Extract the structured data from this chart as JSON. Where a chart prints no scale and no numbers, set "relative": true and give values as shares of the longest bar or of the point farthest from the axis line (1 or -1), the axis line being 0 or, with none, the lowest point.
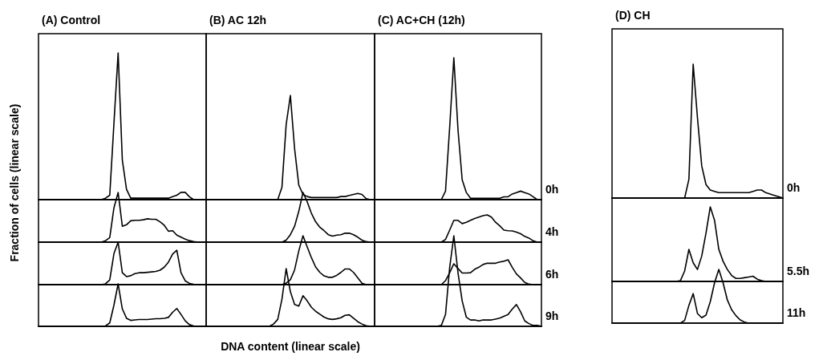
{
  "chart_data": [
    {
      "type": "line",
      "title": "(A) Control",
      "ylabel": "Fraction of cells (linear scale)",
      "relative": true,
      "color": "#000000",
      "categories": [
        null,
        null,
        null,
        null,
        null,
        null,
        null,
        null,
        null,
        null,
        null,
        null,
        null,
        null,
        null,
        null,
        null,
        null,
        null,
        null,
        null,
        null,
        null,
        null,
        null,
        null,
        null,
        null,
        null,
        null,
        null,
        null,
        null,
        null,
        null,
        null,
        null,
        null,
        null,
        null,
        null
      ],
      "values": [
        0,
        0,
        0,
        0,
        0,
        0,
        0,
        0,
        0,
        0,
        0,
        0,
        0,
        0,
        0,
        0,
        0.01,
        0.03,
        0.52,
        1,
        0.27,
        0.07,
        0.01,
        0.01,
        0.01,
        0.01,
        0.01,
        0.01,
        0.01,
        0.01,
        0.01,
        0.01,
        0.02,
        0.03,
        0.05,
        0.05,
        0.02,
        0,
        0,
        0,
        0
      ]
    },
    {
      "type": "line",
      "relative": true,
      "color": "#000000",
      "categories": [
        null,
        null,
        null,
        null,
        null,
        null,
        null,
        null,
        null,
        null,
        null,
        null,
        null,
        null,
        null,
        null,
        null,
        null,
        null,
        null,
        null,
        null,
        null,
        null,
        null,
        null,
        null,
        null,
        null,
        null,
        null,
        null,
        null,
        null,
        null,
        null,
        null,
        null,
        null,
        null,
        null
      ],
      "values": [
        0,
        0,
        0,
        0,
        0,
        0,
        0,
        0,
        0,
        0,
        0,
        0,
        0,
        0,
        0,
        0,
        0.03,
        0.09,
        0.69,
        1,
        0.32,
        0.35,
        0.43,
        0.44,
        0.44,
        0.45,
        0.47,
        0.46,
        0.46,
        0.41,
        0.34,
        0.22,
        0.23,
        0.14,
        0.1,
        0.06,
        0.03,
        0.01,
        0,
        0,
        0
      ]
    },
    {
      "type": "line",
      "relative": true,
      "color": "#000000",
      "categories": [
        null,
        null,
        null,
        null,
        null,
        null,
        null,
        null,
        null,
        null,
        null,
        null,
        null,
        null,
        null,
        null,
        null,
        null,
        null,
        null,
        null,
        null,
        null,
        null,
        null,
        null,
        null,
        null,
        null,
        null,
        null,
        null,
        null,
        null,
        null,
        null,
        null,
        null,
        null,
        null,
        null
      ],
      "values": [
        0,
        0,
        0,
        0,
        0,
        0,
        0,
        0,
        0,
        0,
        0,
        0,
        0,
        0,
        0,
        0,
        0.02,
        0.11,
        0.73,
        1,
        0.28,
        0.19,
        0.21,
        0.26,
        0.28,
        0.28,
        0.29,
        0.3,
        0.31,
        0.34,
        0.41,
        0.53,
        0.72,
        0.81,
        0.28,
        0.09,
        0.03,
        0.01,
        0,
        0,
        0
      ]
    },
    {
      "type": "line",
      "relative": true,
      "color": "#000000",
      "categories": [
        null,
        null,
        null,
        null,
        null,
        null,
        null,
        null,
        null,
        null,
        null,
        null,
        null,
        null,
        null,
        null,
        null,
        null,
        null,
        null,
        null,
        null,
        null,
        null,
        null,
        null,
        null,
        null,
        null,
        null,
        null,
        null,
        null,
        null,
        null,
        null,
        null,
        null,
        null,
        null,
        null
      ],
      "values": [
        0,
        0,
        0,
        0,
        0,
        0,
        0,
        0,
        0,
        0,
        0,
        0,
        0,
        0,
        0,
        0,
        0.01,
        0.08,
        0.5,
        1,
        0.41,
        0.19,
        0.14,
        0.15,
        0.16,
        0.16,
        0.16,
        0.17,
        0.18,
        0.18,
        0.19,
        0.21,
        0.33,
        0.42,
        0.28,
        0.13,
        0.04,
        0.01,
        0,
        0,
        0
      ]
    },
    {
      "type": "line",
      "title": "(B) AC 12h",
      "relative": true,
      "color": "#000000",
      "categories": [
        null,
        null,
        null,
        null,
        null,
        null,
        null,
        null,
        null,
        null,
        null,
        null,
        null,
        null,
        null,
        null,
        null,
        null,
        null,
        null,
        null,
        null,
        null,
        null,
        null,
        null,
        null,
        null,
        null,
        null,
        null,
        null,
        null,
        null,
        null,
        null,
        null,
        null,
        null,
        null,
        null
      ],
      "values": [
        0,
        0,
        0,
        0,
        0,
        0,
        0,
        0,
        0,
        0,
        0,
        0,
        0,
        0,
        0,
        0,
        0,
        0,
        0.12,
        0.72,
        1,
        0.49,
        0.14,
        0.05,
        0.03,
        0.02,
        0.02,
        0.02,
        0.02,
        0.02,
        0.02,
        0.02,
        0.03,
        0.03,
        0.04,
        0.05,
        0.06,
        0.05,
        0.01,
        0,
        0
      ]
    },
    {
      "type": "line",
      "relative": true,
      "color": "#000000",
      "categories": [
        null,
        null,
        null,
        null,
        null,
        null,
        null,
        null,
        null,
        null,
        null,
        null,
        null,
        null,
        null,
        null,
        null,
        null,
        null,
        null,
        null,
        null,
        null,
        null,
        null,
        null,
        null,
        null,
        null,
        null,
        null,
        null,
        null,
        null,
        null,
        null,
        null,
        null,
        null,
        null,
        null
      ],
      "values": [
        0,
        0,
        0,
        0,
        0,
        0,
        0,
        0,
        0,
        0,
        0,
        0,
        0,
        0,
        0,
        0,
        0,
        0,
        0,
        0.04,
        0.15,
        0.32,
        0.62,
        1,
        0.81,
        0.58,
        0.41,
        0.3,
        0.23,
        0.15,
        0.12,
        0.14,
        0.15,
        0.18,
        0.18,
        0.15,
        0.1,
        0.04,
        0.01,
        0,
        0
      ]
    },
    {
      "type": "line",
      "relative": true,
      "color": "#000000",
      "categories": [
        null,
        null,
        null,
        null,
        null,
        null,
        null,
        null,
        null,
        null,
        null,
        null,
        null,
        null,
        null,
        null,
        null,
        null,
        null,
        null,
        null,
        null,
        null,
        null,
        null,
        null,
        null,
        null,
        null,
        null,
        null,
        null,
        null,
        null,
        null,
        null,
        null,
        null,
        null,
        null,
        null
      ],
      "values": [
        0,
        0,
        0,
        0,
        0,
        0,
        0,
        0,
        0,
        0,
        0,
        0,
        0,
        0,
        0,
        0,
        0,
        0,
        0,
        0.03,
        0.1,
        0.3,
        0.69,
        1,
        0.77,
        0.55,
        0.36,
        0.25,
        0.18,
        0.15,
        0.15,
        0.19,
        0.25,
        0.32,
        0.32,
        0.25,
        0.14,
        0.03,
        0,
        0,
        0
      ]
    },
    {
      "type": "line",
      "xlabel": "DNA content (linear scale)",
      "relative": true,
      "color": "#000000",
      "categories": [
        null,
        null,
        null,
        null,
        null,
        null,
        null,
        null,
        null,
        null,
        null,
        null,
        null,
        null,
        null,
        null,
        null,
        null,
        null,
        null,
        null,
        null,
        null,
        null,
        null,
        null,
        null,
        null,
        null,
        null,
        null,
        null,
        null,
        null,
        null,
        null,
        null,
        null,
        null,
        null,
        null
      ],
      "values": [
        0,
        0,
        0,
        0,
        0,
        0,
        0,
        0,
        0,
        0,
        0,
        0,
        0,
        0,
        0,
        0,
        0.04,
        0.12,
        0.47,
        1,
        0.6,
        0.38,
        0.35,
        0.53,
        0.44,
        0.33,
        0.26,
        0.21,
        0.16,
        0.13,
        0.12,
        0.13,
        0.15,
        0.19,
        0.2,
        0.14,
        0.08,
        0.04,
        0.01,
        0,
        0
      ]
    },
    {
      "type": "line",
      "title": "(C) AC+CH (12h)",
      "annotations": [
        "0h"
      ],
      "relative": true,
      "color": "#000000",
      "categories": [
        null,
        null,
        null,
        null,
        null,
        null,
        null,
        null,
        null,
        null,
        null,
        null,
        null,
        null,
        null,
        null,
        null,
        null,
        null,
        null,
        null,
        null,
        null,
        null,
        null,
        null,
        null,
        null,
        null,
        null,
        null,
        null,
        null,
        null,
        null,
        null,
        null,
        null,
        null,
        null,
        null
      ],
      "values": [
        0,
        0,
        0,
        0,
        0,
        0,
        0,
        0,
        0,
        0,
        0,
        0,
        0,
        0,
        0,
        0,
        0,
        0.06,
        0.51,
        1,
        0.49,
        0.14,
        0.05,
        0.01,
        0.01,
        0.01,
        0.01,
        0.01,
        0.01,
        0.01,
        0.01,
        0.02,
        0.02,
        0.04,
        0.05,
        0.06,
        0.05,
        0.04,
        0.02,
        0,
        0
      ]
    },
    {
      "type": "line",
      "annotations": [
        "4h"
      ],
      "relative": true,
      "color": "#000000",
      "categories": [
        null,
        null,
        null,
        null,
        null,
        null,
        null,
        null,
        null,
        null,
        null,
        null,
        null,
        null,
        null,
        null,
        null,
        null,
        null,
        null,
        null,
        null,
        null,
        null,
        null,
        null,
        null,
        null,
        null,
        null,
        null,
        null,
        null,
        null,
        null,
        null,
        null,
        null,
        null,
        null,
        null
      ],
      "values": [
        0,
        0,
        0,
        0,
        0,
        0,
        0,
        0,
        0,
        0,
        0,
        0,
        0,
        0,
        0,
        0,
        0,
        0.1,
        0.44,
        0.8,
        0.8,
        0.68,
        0.73,
        0.8,
        0.87,
        0.92,
        0.97,
        1,
        0.92,
        0.73,
        0.6,
        0.44,
        0.42,
        0.41,
        0.37,
        0.31,
        0.21,
        0.15,
        0.05,
        0,
        0
      ]
    },
    {
      "type": "line",
      "annotations": [
        "6h"
      ],
      "relative": true,
      "color": "#000000",
      "categories": [
        null,
        null,
        null,
        null,
        null,
        null,
        null,
        null,
        null,
        null,
        null,
        null,
        null,
        null,
        null,
        null,
        null,
        null,
        null,
        null,
        null,
        null,
        null,
        null,
        null,
        null,
        null,
        null,
        null,
        null,
        null,
        null,
        null,
        null,
        null,
        null,
        null,
        null,
        null,
        null,
        null
      ],
      "values": [
        0,
        0,
        0,
        0,
        0,
        0,
        0,
        0,
        0,
        0,
        0,
        0,
        0,
        0,
        0,
        0,
        0,
        0.16,
        0.48,
        0.84,
        0.65,
        0.47,
        0.47,
        0.48,
        0.62,
        0.7,
        0.81,
        0.86,
        0.86,
        0.86,
        0.91,
        0.94,
        1,
        0.7,
        0.43,
        0.27,
        0.09,
        0.02,
        0,
        0,
        0
      ]
    },
    {
      "type": "line",
      "annotations": [
        "9h"
      ],
      "relative": true,
      "color": "#000000",
      "categories": [
        null,
        null,
        null,
        null,
        null,
        null,
        null,
        null,
        null,
        null,
        null,
        null,
        null,
        null,
        null,
        null,
        null,
        null,
        null,
        null,
        null,
        null,
        null,
        null,
        null,
        null,
        null,
        null,
        null,
        null,
        null,
        null,
        null,
        null,
        null,
        null,
        null,
        null,
        null,
        null,
        null
      ],
      "values": [
        0,
        0,
        0,
        0,
        0,
        0,
        0,
        0,
        0,
        0,
        0,
        0,
        0,
        0,
        0,
        0,
        0.01,
        0.13,
        0.65,
        1,
        0.59,
        0.28,
        0.1,
        0.07,
        0.07,
        0.06,
        0.07,
        0.07,
        0.07,
        0.08,
        0.09,
        0.11,
        0.13,
        0.19,
        0.24,
        0.16,
        0.06,
        0.03,
        0.01,
        0.01,
        0
      ]
    },
    {
      "type": "line",
      "title": "(D) CH",
      "annotations": [
        "0h"
      ],
      "relative": true,
      "color": "#000000",
      "categories": [
        null,
        null,
        null,
        null,
        null,
        null,
        null,
        null,
        null,
        null,
        null,
        null,
        null,
        null,
        null,
        null,
        null,
        null,
        null,
        null,
        null,
        null,
        null,
        null,
        null,
        null,
        null,
        null,
        null,
        null,
        null,
        null,
        null,
        null,
        null,
        null,
        null,
        null,
        null,
        null,
        null
      ],
      "values": [
        0,
        0,
        0,
        0,
        0,
        0,
        0,
        0,
        0,
        0,
        0,
        0,
        0,
        0,
        0,
        0,
        0,
        0,
        0.14,
        1,
        0.6,
        0.24,
        0.1,
        0.06,
        0.05,
        0.04,
        0.04,
        0.04,
        0.04,
        0.04,
        0.04,
        0.04,
        0.04,
        0.05,
        0.06,
        0.06,
        0.04,
        0.03,
        0.02,
        0.01,
        0
      ]
    },
    {
      "type": "line",
      "annotations": [
        "5.5h"
      ],
      "relative": true,
      "color": "#000000",
      "categories": [
        null,
        null,
        null,
        null,
        null,
        null,
        null,
        null,
        null,
        null,
        null,
        null,
        null,
        null,
        null,
        null,
        null,
        null,
        null,
        null,
        null,
        null,
        null,
        null,
        null,
        null,
        null,
        null,
        null,
        null,
        null,
        null,
        null,
        null,
        null,
        null,
        null,
        null,
        null,
        null,
        null
      ],
      "values": [
        0,
        0,
        0,
        0,
        0,
        0,
        0,
        0,
        0,
        0,
        0,
        0,
        0,
        0,
        0,
        0,
        0.01,
        0.14,
        0.43,
        0.25,
        0.16,
        0.34,
        0.65,
        1,
        0.82,
        0.43,
        0.27,
        0.16,
        0.08,
        0.04,
        0.04,
        0.05,
        0.06,
        0.07,
        0.03,
        0.01,
        0,
        0,
        0,
        0,
        0
      ]
    },
    {
      "type": "line",
      "annotations": [
        "11h"
      ],
      "relative": true,
      "color": "#000000",
      "categories": [
        null,
        null,
        null,
        null,
        null,
        null,
        null,
        null,
        null,
        null,
        null,
        null,
        null,
        null,
        null,
        null,
        null,
        null,
        null,
        null,
        null,
        null,
        null,
        null,
        null,
        null,
        null,
        null,
        null,
        null,
        null,
        null,
        null,
        null,
        null,
        null,
        null,
        null,
        null,
        null,
        null
      ],
      "values": [
        0,
        0,
        0,
        0,
        0,
        0,
        0,
        0,
        0,
        0,
        0,
        0,
        0,
        0,
        0,
        0,
        0,
        0.05,
        0.33,
        0.55,
        0.18,
        0.1,
        0.15,
        0.4,
        0.75,
        1,
        0.75,
        0.43,
        0.25,
        0.14,
        0.06,
        0.02,
        0,
        0,
        0,
        0,
        0,
        0,
        0,
        0,
        0
      ]
    }
  ]
}
